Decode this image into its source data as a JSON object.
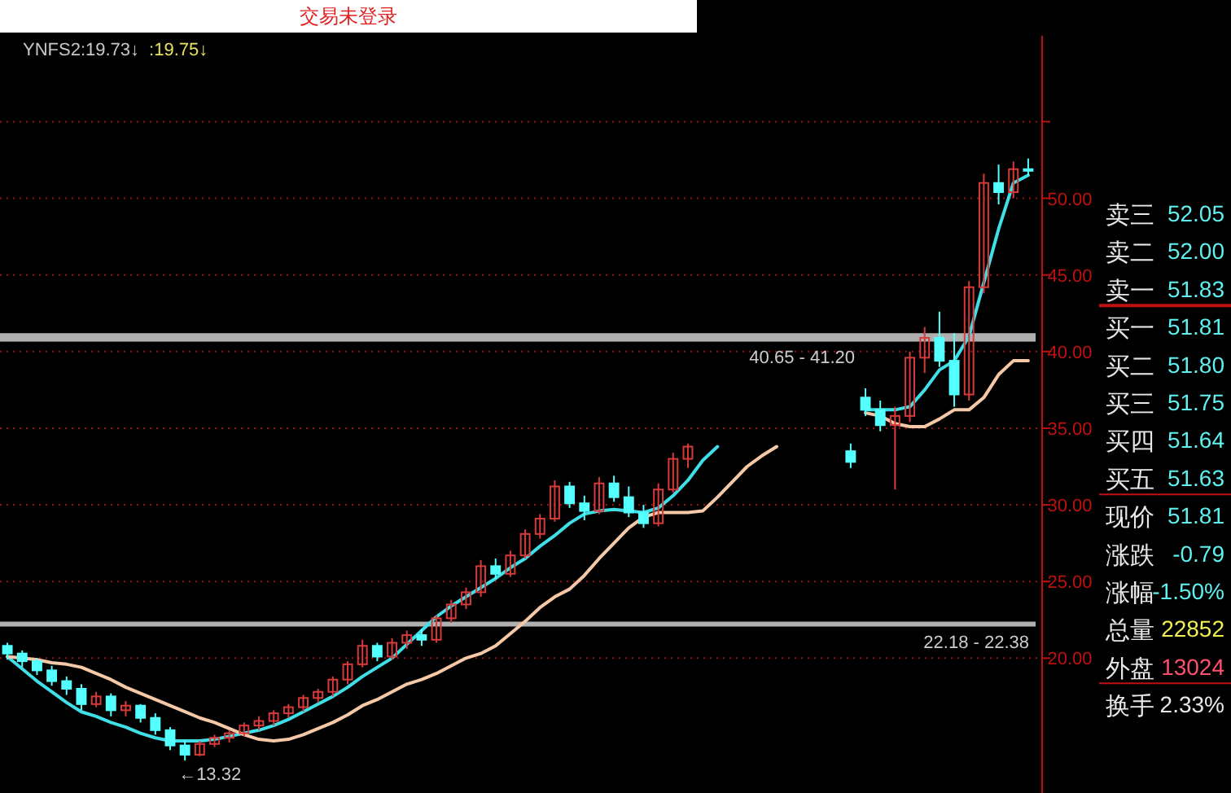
{
  "chart_data": [
    {
      "type": "candlestick",
      "annotations": [
        "交易未登录",
        "YNFS2:19.73↓",
        ":19.75↓",
        {
          "text": "←13.32",
          "y": 13.32
        },
        "卖三",
        "52.05",
        "卖二",
        "52.00",
        "卖一",
        "51.83",
        "买一",
        "51.81",
        "买二",
        "51.80",
        "买三",
        "51.75",
        "买四",
        "51.64",
        "买五",
        "51.63",
        "现价",
        "51.81",
        "涨跌",
        "-0.79",
        "涨幅",
        "-1.50%",
        "总量",
        "22852",
        "外盘",
        "13024",
        "换手",
        "2.33%"
      ],
      "categories": [
        null,
        null,
        null,
        null,
        null,
        null,
        null,
        null,
        null,
        null,
        null,
        null,
        null,
        null,
        null,
        null,
        null,
        null,
        null,
        null,
        null,
        null,
        null,
        null,
        null,
        null,
        null,
        null,
        null,
        null,
        null,
        null,
        null,
        null,
        null,
        null,
        null,
        null,
        null,
        null,
        null,
        null,
        null,
        null,
        null,
        null,
        null,
        null,
        null,
        null,
        null,
        null,
        null,
        null,
        null,
        null,
        null,
        null,
        null,
        null,
        null,
        null,
        null,
        null,
        null,
        null,
        null,
        null,
        null,
        null
      ],
      "ohlc": [
        [
          20.8,
          21.0,
          19.9,
          20.3
        ],
        [
          20.3,
          20.5,
          19.4,
          19.8
        ],
        [
          19.8,
          20.0,
          18.9,
          19.2
        ],
        [
          19.2,
          19.5,
          18.2,
          18.5
        ],
        [
          18.5,
          18.8,
          17.6,
          18.0
        ],
        [
          18.0,
          18.3,
          16.6,
          17.0
        ],
        [
          17.0,
          17.8,
          16.8,
          17.5
        ],
        [
          17.5,
          17.7,
          16.2,
          16.6
        ],
        [
          16.6,
          17.2,
          16.2,
          16.9
        ],
        [
          16.9,
          17.0,
          15.8,
          16.1
        ],
        [
          16.1,
          16.4,
          15.0,
          15.3
        ],
        [
          15.3,
          15.5,
          14.0,
          14.3
        ],
        [
          14.3,
          14.6,
          13.32,
          13.7
        ],
        [
          13.7,
          14.6,
          13.6,
          14.4
        ],
        [
          14.4,
          15.0,
          14.2,
          14.8
        ],
        [
          14.8,
          15.3,
          14.5,
          15.1
        ],
        [
          15.1,
          15.8,
          14.9,
          15.6
        ],
        [
          15.6,
          16.2,
          15.3,
          15.9
        ],
        [
          15.9,
          16.6,
          15.6,
          16.4
        ],
        [
          16.4,
          17.0,
          16.1,
          16.8
        ],
        [
          16.8,
          17.6,
          16.5,
          17.4
        ],
        [
          17.4,
          18.0,
          17.1,
          17.8
        ],
        [
          17.8,
          18.8,
          17.5,
          18.6
        ],
        [
          18.6,
          19.8,
          18.3,
          19.6
        ],
        [
          19.6,
          21.2,
          19.4,
          20.8
        ],
        [
          20.8,
          21.0,
          19.8,
          20.1
        ],
        [
          20.1,
          21.3,
          19.9,
          21.0
        ],
        [
          21.0,
          21.8,
          20.6,
          21.5
        ],
        [
          21.5,
          21.9,
          20.8,
          21.2
        ],
        [
          21.2,
          22.8,
          21.0,
          22.6
        ],
        [
          22.6,
          23.8,
          22.3,
          23.5
        ],
        [
          23.5,
          24.6,
          23.2,
          24.3
        ],
        [
          24.3,
          26.4,
          24.0,
          26.0
        ],
        [
          26.0,
          26.5,
          25.2,
          25.5
        ],
        [
          25.5,
          27.0,
          25.3,
          26.7
        ],
        [
          26.7,
          28.4,
          26.5,
          28.1
        ],
        [
          28.1,
          29.4,
          27.8,
          29.1
        ],
        [
          29.1,
          31.6,
          28.9,
          31.2
        ],
        [
          31.2,
          31.5,
          29.8,
          30.1
        ],
        [
          30.1,
          30.6,
          29.0,
          29.6
        ],
        [
          29.6,
          31.8,
          29.4,
          31.4
        ],
        [
          31.4,
          31.9,
          30.2,
          30.5
        ],
        [
          30.5,
          31.2,
          29.2,
          29.5
        ],
        [
          29.5,
          30.0,
          28.5,
          28.8
        ],
        [
          28.8,
          31.4,
          28.6,
          31.0
        ],
        [
          31.0,
          33.4,
          30.8,
          33.0
        ],
        [
          33.0,
          34.0,
          32.4,
          33.8
        ],
        null,
        null,
        null,
        null,
        null,
        null,
        null,
        null,
        null,
        null,
        [
          33.5,
          34.0,
          32.4,
          32.8
        ],
        [
          37.0,
          37.6,
          35.8,
          36.2
        ],
        [
          36.2,
          36.8,
          34.8,
          35.2
        ],
        [
          35.2,
          36.4,
          31.0,
          35.8
        ],
        [
          35.8,
          40.0,
          35.4,
          39.6
        ],
        [
          39.6,
          41.6,
          38.6,
          40.9
        ],
        [
          40.9,
          42.6,
          39.0,
          39.4
        ],
        [
          39.4,
          41.2,
          36.4,
          37.2
        ],
        [
          37.2,
          44.6,
          36.8,
          44.2
        ],
        [
          44.2,
          51.6,
          43.8,
          51.0
        ],
        [
          51.0,
          52.2,
          49.6,
          50.4
        ],
        [
          50.4,
          52.4,
          50.0,
          51.9
        ],
        [
          51.9,
          52.6,
          51.5,
          51.81
        ]
      ],
      "series": [
        {
          "type": "line",
          "color": "#3fdfe8",
          "values": [
            20.1,
            19.3,
            18.5,
            17.8,
            17.1,
            16.5,
            16.2,
            15.8,
            15.5,
            15.1,
            14.8,
            14.6,
            14.6,
            14.6,
            14.7,
            14.9,
            15.1,
            15.3,
            15.6,
            16.0,
            16.5,
            17.0,
            17.5,
            18.1,
            18.8,
            19.4,
            20.0,
            20.9,
            21.8,
            22.7,
            23.4,
            24.0,
            24.6,
            25.2,
            25.9,
            26.5,
            27.3,
            28.0,
            28.8,
            29.4,
            29.6,
            29.7,
            29.6,
            29.5,
            29.8,
            30.6,
            31.6,
            32.9,
            33.8,
            null,
            null,
            null,
            null,
            null,
            null,
            null,
            null,
            null,
            36.2,
            36.2,
            36.2,
            36.4,
            37.5,
            38.8,
            39.4,
            41.0,
            44.5,
            48.0,
            51.0,
            51.5
          ]
        },
        {
          "type": "line",
          "color": "#f5c9a8",
          "values": [
            20.1,
            20.0,
            19.9,
            19.7,
            19.6,
            19.4,
            19.0,
            18.6,
            18.1,
            17.7,
            17.3,
            16.9,
            16.5,
            16.1,
            15.8,
            15.4,
            15.0,
            14.7,
            14.6,
            14.7,
            15.0,
            15.4,
            15.8,
            16.3,
            16.9,
            17.3,
            17.8,
            18.3,
            18.6,
            19.0,
            19.5,
            20.0,
            20.3,
            20.8,
            21.6,
            22.4,
            23.3,
            24.0,
            24.5,
            25.4,
            26.5,
            27.5,
            28.5,
            29.2,
            29.5,
            29.5,
            29.5,
            29.6,
            30.5,
            31.5,
            32.5,
            33.2,
            33.8,
            null,
            null,
            null,
            null,
            null,
            36.0,
            35.8,
            35.3,
            35.1,
            35.1,
            35.6,
            36.2,
            36.2,
            37.0,
            38.5,
            39.4,
            39.4
          ]
        }
      ],
      "bands": [
        {
          "axis": "y",
          "from": 22.18,
          "to": 22.38,
          "label": "22.18 - 22.38",
          "color": "#b0b0b0"
        },
        {
          "axis": "y",
          "from": 40.65,
          "to": 41.2,
          "label": "40.65 - 41.20",
          "color": "#b0b0b0"
        }
      ],
      "ylim": [
        11.2,
        60.6
      ],
      "yticks": [
        {
          "value": 20,
          "label": "20.00"
        },
        {
          "value": 25,
          "label": "25.00"
        },
        {
          "value": 30,
          "label": "30.00"
        },
        {
          "value": 35,
          "label": "35.00"
        },
        {
          "value": 40,
          "label": "40.00"
        },
        {
          "value": 45,
          "label": "45.00"
        },
        {
          "value": 50,
          "label": "50.00"
        },
        {
          "value": 55,
          "label": null
        }
      ],
      "grid": "y"
    }
  ]
}
